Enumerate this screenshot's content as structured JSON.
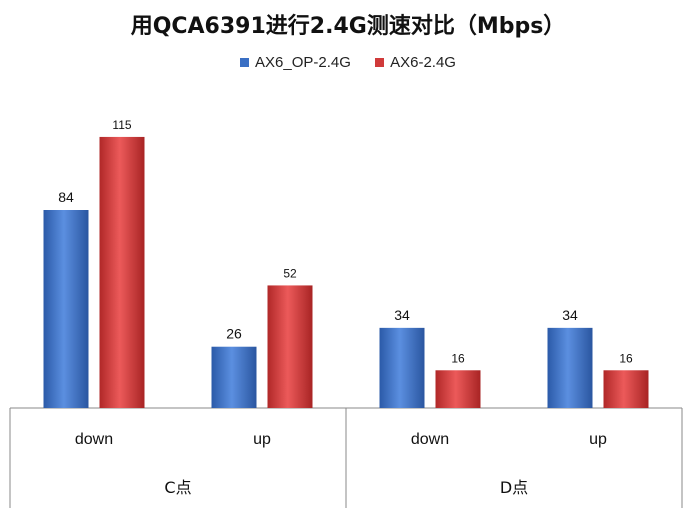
{
  "chart_data": {
    "type": "bar",
    "title": "用QCA6391进行2.4G测速对比（Mbps）",
    "groups": [
      {
        "label": "C点",
        "categories": [
          "down",
          "up"
        ]
      },
      {
        "label": "D点",
        "categories": [
          "down",
          "up"
        ]
      }
    ],
    "categories": [
      "down",
      "up",
      "down",
      "up"
    ],
    "series": [
      {
        "name": "AX6_OP-2.4G",
        "values": [
          84,
          26,
          34,
          34
        ],
        "color": "#3a6fc4"
      },
      {
        "name": "AX6-2.4G",
        "values": [
          115,
          52,
          16,
          16
        ],
        "color": "#d03a3a"
      }
    ],
    "ylim": [
      0,
      140
    ],
    "legend_position": "top",
    "grid": false
  }
}
